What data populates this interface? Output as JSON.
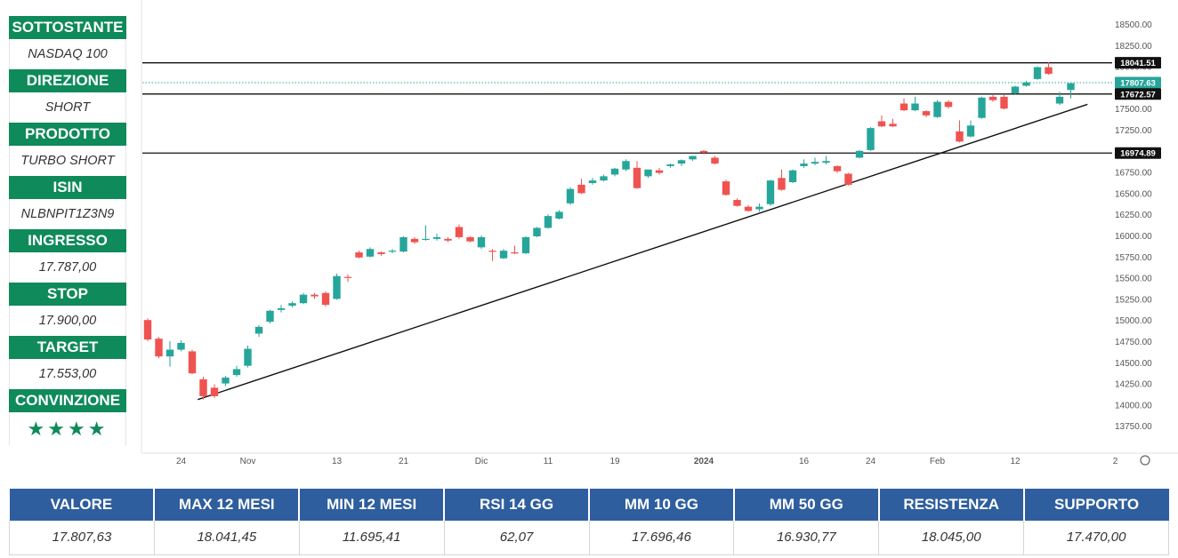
{
  "info_panel": {
    "sottostante": {
      "label": "SOTTOSTANTE",
      "value": "NASDAQ 100"
    },
    "direzione": {
      "label": "DIREZIONE",
      "value": "SHORT"
    },
    "prodotto": {
      "label": "PRODOTTO",
      "value": "TURBO SHORT"
    },
    "isin": {
      "label": "ISIN",
      "value": "NLBNPIT1Z3N9"
    },
    "ingresso": {
      "label": "INGRESSO",
      "value": "17.787,00"
    },
    "stop": {
      "label": "STOP",
      "value": "17.900,00"
    },
    "target": {
      "label": "TARGET",
      "value": "17.553,00"
    },
    "convinzione": {
      "label": "CONVINZIONE",
      "value": "★★★★"
    }
  },
  "stats": {
    "headers": [
      "VALORE",
      "MAX 12 MESI",
      "MIN 12 MESI",
      "RSI 14 GG",
      "MM 10 GG",
      "MM 50 GG",
      "RESISTENZA",
      "SUPPORTO"
    ],
    "values": [
      "17.807,63",
      "18.041,45",
      "11.695,41",
      "62,07",
      "17.696,46",
      "16.930,77",
      "18.045,00",
      "17.470,00"
    ]
  },
  "colors": {
    "accent_green": "#0f8a5a",
    "table_blue": "#2f5e9e",
    "candle_up": "#26a69a",
    "candle_down": "#ef5350",
    "price_tag": "#26a69a"
  },
  "chart_data": {
    "type": "candlestick",
    "ylim": [
      13500,
      18700
    ],
    "y_ticks": [
      13750,
      14000,
      14250,
      14500,
      14750,
      15000,
      15250,
      15500,
      15750,
      16000,
      16250,
      16500,
      16750,
      17000,
      17250,
      17500,
      17750,
      18000,
      18250,
      18500
    ],
    "y_tick_labels": [
      "13750.00",
      "14000.00",
      "14250.00",
      "14500.00",
      "14750.00",
      "15000.00",
      "15250.00",
      "15500.00",
      "15750.00",
      "16000.00",
      "16250.00",
      "16500.00",
      "16750.00",
      "17000.00",
      "17250.00",
      "17500.00",
      "17750.00",
      "18000.00",
      "18250.00",
      "18500.00"
    ],
    "x_ticks": [
      {
        "bar": 3,
        "label": "24"
      },
      {
        "bar": 9,
        "label": "Nov"
      },
      {
        "bar": 17,
        "label": "13"
      },
      {
        "bar": 23,
        "label": "21"
      },
      {
        "bar": 30,
        "label": "Dic"
      },
      {
        "bar": 36,
        "label": "11"
      },
      {
        "bar": 42,
        "label": "19"
      },
      {
        "bar": 50,
        "label": "2024"
      },
      {
        "bar": 59,
        "label": "16"
      },
      {
        "bar": 65,
        "label": "24"
      },
      {
        "bar": 71,
        "label": "Feb"
      },
      {
        "bar": 78,
        "label": "12"
      },
      {
        "bar": 87,
        "label": "2"
      }
    ],
    "candles": [
      {
        "o": 15000,
        "h": 15020,
        "c": 14770,
        "l": 14750
      },
      {
        "o": 14780,
        "h": 14800,
        "c": 14570,
        "l": 14550
      },
      {
        "o": 14570,
        "h": 14750,
        "c": 14650,
        "l": 14450
      },
      {
        "o": 14650,
        "h": 14760,
        "c": 14730,
        "l": 14630
      },
      {
        "o": 14630,
        "h": 14650,
        "c": 14370,
        "l": 14360
      },
      {
        "o": 14300,
        "h": 14330,
        "c": 14100,
        "l": 14060
      },
      {
        "o": 14200,
        "h": 14240,
        "c": 14100,
        "l": 14080
      },
      {
        "o": 14250,
        "h": 14340,
        "c": 14320,
        "l": 14220
      },
      {
        "o": 14350,
        "h": 14460,
        "c": 14420,
        "l": 14330
      },
      {
        "o": 14460,
        "h": 14700,
        "c": 14660,
        "l": 14440
      },
      {
        "o": 14840,
        "h": 14940,
        "c": 14920,
        "l": 14800
      },
      {
        "o": 14980,
        "h": 15120,
        "c": 15110,
        "l": 14960
      },
      {
        "o": 15120,
        "h": 15180,
        "c": 15140,
        "l": 15090
      },
      {
        "o": 15170,
        "h": 15220,
        "c": 15200,
        "l": 15150
      },
      {
        "o": 15200,
        "h": 15320,
        "c": 15300,
        "l": 15190
      },
      {
        "o": 15300,
        "h": 15320,
        "c": 15280,
        "l": 15250
      },
      {
        "o": 15320,
        "h": 15340,
        "c": 15180,
        "l": 15160
      },
      {
        "o": 15250,
        "h": 15550,
        "c": 15520,
        "l": 15240
      },
      {
        "o": 15510,
        "h": 15540,
        "c": 15500,
        "l": 15450
      },
      {
        "o": 15800,
        "h": 15820,
        "c": 15740,
        "l": 15730
      },
      {
        "o": 15750,
        "h": 15860,
        "c": 15840,
        "l": 15740
      },
      {
        "o": 15800,
        "h": 15810,
        "c": 15780,
        "l": 15760
      },
      {
        "o": 15810,
        "h": 15840,
        "c": 15820,
        "l": 15790
      },
      {
        "o": 15810,
        "h": 15990,
        "c": 15980,
        "l": 15800
      },
      {
        "o": 15960,
        "h": 15980,
        "c": 15920,
        "l": 15900
      },
      {
        "o": 15950,
        "h": 16120,
        "c": 15960,
        "l": 15940
      },
      {
        "o": 15960,
        "h": 16020,
        "c": 15980,
        "l": 15940
      },
      {
        "o": 15960,
        "h": 15980,
        "c": 15940,
        "l": 15920
      },
      {
        "o": 16100,
        "h": 16130,
        "c": 15980,
        "l": 15960
      },
      {
        "o": 15980,
        "h": 15990,
        "c": 15930,
        "l": 15920
      },
      {
        "o": 15860,
        "h": 16000,
        "c": 15980,
        "l": 15840
      },
      {
        "o": 15820,
        "h": 15840,
        "c": 15810,
        "l": 15700
      },
      {
        "o": 15730,
        "h": 15840,
        "c": 15820,
        "l": 15720
      },
      {
        "o": 15800,
        "h": 15880,
        "c": 15790,
        "l": 15780
      },
      {
        "o": 15790,
        "h": 15990,
        "c": 15980,
        "l": 15780
      },
      {
        "o": 15990,
        "h": 16100,
        "c": 16090,
        "l": 15980
      },
      {
        "o": 16090,
        "h": 16250,
        "c": 16230,
        "l": 16080
      },
      {
        "o": 16200,
        "h": 16300,
        "c": 16280,
        "l": 16190
      },
      {
        "o": 16380,
        "h": 16570,
        "c": 16550,
        "l": 16360
      },
      {
        "o": 16600,
        "h": 16670,
        "c": 16500,
        "l": 16490
      },
      {
        "o": 16620,
        "h": 16680,
        "c": 16650,
        "l": 16600
      },
      {
        "o": 16650,
        "h": 16720,
        "c": 16700,
        "l": 16640
      },
      {
        "o": 16720,
        "h": 16800,
        "c": 16790,
        "l": 16700
      },
      {
        "o": 16780,
        "h": 16900,
        "c": 16880,
        "l": 16760
      },
      {
        "o": 16800,
        "h": 16880,
        "c": 16560,
        "l": 16550
      },
      {
        "o": 16700,
        "h": 16740,
        "c": 16780,
        "l": 16680
      },
      {
        "o": 16770,
        "h": 16800,
        "c": 16740,
        "l": 16720
      },
      {
        "o": 16820,
        "h": 16850,
        "c": 16840,
        "l": 16800
      },
      {
        "o": 16850,
        "h": 16900,
        "c": 16890,
        "l": 16820
      },
      {
        "o": 16900,
        "h": 16920,
        "c": 16940,
        "l": 16880
      },
      {
        "o": 17000,
        "h": 17010,
        "c": 16980,
        "l": 16960
      },
      {
        "o": 16920,
        "h": 16940,
        "c": 16850,
        "l": 16840
      },
      {
        "o": 16640,
        "h": 16660,
        "c": 16480,
        "l": 16470
      },
      {
        "o": 16420,
        "h": 16440,
        "c": 16350,
        "l": 16340
      },
      {
        "o": 16340,
        "h": 16360,
        "c": 16290,
        "l": 16280
      },
      {
        "o": 16310,
        "h": 16380,
        "c": 16340,
        "l": 16280
      },
      {
        "o": 16370,
        "h": 16660,
        "c": 16650,
        "l": 16350
      },
      {
        "o": 16680,
        "h": 16780,
        "c": 16540,
        "l": 16530
      },
      {
        "o": 16630,
        "h": 16780,
        "c": 16770,
        "l": 16620
      },
      {
        "o": 16820,
        "h": 16900,
        "c": 16850,
        "l": 16800
      },
      {
        "o": 16850,
        "h": 16920,
        "c": 16870,
        "l": 16830
      },
      {
        "o": 16860,
        "h": 16940,
        "c": 16880,
        "l": 16840
      },
      {
        "o": 16820,
        "h": 16830,
        "c": 16760,
        "l": 16740
      },
      {
        "o": 16730,
        "h": 16740,
        "c": 16600,
        "l": 16590
      },
      {
        "o": 16920,
        "h": 17010,
        "c": 17000,
        "l": 16910
      },
      {
        "o": 17010,
        "h": 17280,
        "c": 17270,
        "l": 17000
      },
      {
        "o": 17350,
        "h": 17420,
        "c": 17290,
        "l": 17280
      },
      {
        "o": 17320,
        "h": 17380,
        "c": 17290,
        "l": 17280
      },
      {
        "o": 17560,
        "h": 17620,
        "c": 17480,
        "l": 17470
      },
      {
        "o": 17480,
        "h": 17640,
        "c": 17560,
        "l": 17470
      },
      {
        "o": 17470,
        "h": 17480,
        "c": 17420,
        "l": 17400
      },
      {
        "o": 17400,
        "h": 17600,
        "c": 17580,
        "l": 17390
      },
      {
        "o": 17580,
        "h": 17600,
        "c": 17520,
        "l": 17500
      },
      {
        "o": 17230,
        "h": 17360,
        "c": 17110,
        "l": 17100
      },
      {
        "o": 17170,
        "h": 17360,
        "c": 17300,
        "l": 17160
      },
      {
        "o": 17390,
        "h": 17640,
        "c": 17630,
        "l": 17380
      },
      {
        "o": 17640,
        "h": 17660,
        "c": 17600,
        "l": 17580
      },
      {
        "o": 17640,
        "h": 17660,
        "c": 17500,
        "l": 17490
      },
      {
        "o": 17680,
        "h": 17770,
        "c": 17760,
        "l": 17670
      },
      {
        "o": 17770,
        "h": 17830,
        "c": 17810,
        "l": 17760
      },
      {
        "o": 17850,
        "h": 18000,
        "c": 17990,
        "l": 17840
      },
      {
        "o": 17990,
        "h": 18050,
        "c": 17910,
        "l": 17900
      },
      {
        "o": 17560,
        "h": 17700,
        "c": 17640,
        "l": 17540
      },
      {
        "o": 17720,
        "h": 17810,
        "c": 17800,
        "l": 17620
      }
    ],
    "horizontal_levels": [
      {
        "value": 18041.51,
        "label": "18041.51",
        "style": "solid"
      },
      {
        "value": 17807.63,
        "label": "17807.63",
        "style": "dotted"
      },
      {
        "value": 17672.57,
        "label": "17672.57",
        "style": "solid"
      },
      {
        "value": 16974.89,
        "label": "16974.89",
        "style": "solid"
      }
    ],
    "trendline": {
      "from": {
        "bar": 4.5,
        "value": 14060
      },
      "to": {
        "bar": 84.5,
        "value": 17550
      }
    }
  }
}
